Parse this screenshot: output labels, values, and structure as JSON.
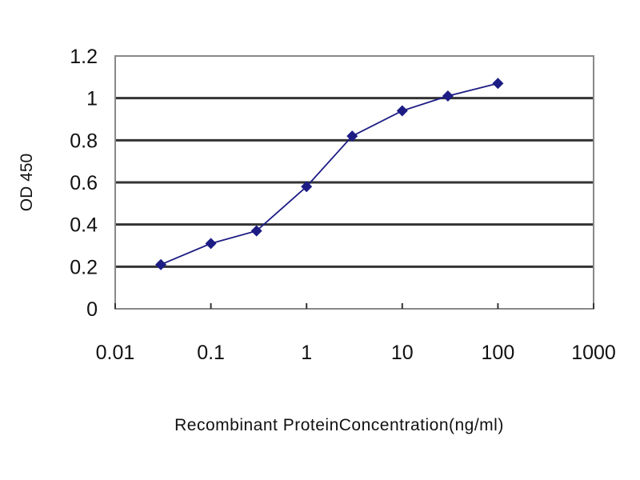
{
  "chart_data": {
    "type": "line",
    "title": "",
    "xlabel": "Recombinant ProteinConcentration(ng/ml)",
    "ylabel": "OD 450",
    "x_scale": "log",
    "xlim": [
      0.01,
      1000
    ],
    "ylim": [
      0,
      1.2
    ],
    "x_ticks": [
      "0.01",
      "0.1",
      "1",
      "10",
      "100",
      "1000"
    ],
    "y_ticks": [
      "0",
      "0.2",
      "0.4",
      "0.6",
      "0.8",
      "1",
      "1.2"
    ],
    "grid": "horizontal",
    "legend": "none",
    "series": [
      {
        "x": [
          0.03,
          0.1,
          0.3,
          1,
          3,
          10,
          30,
          100
        ],
        "y": [
          0.21,
          0.31,
          0.37,
          0.58,
          0.82,
          0.94,
          1.01,
          1.07
        ],
        "color": "#1c1c84",
        "marker": "diamond"
      }
    ]
  }
}
